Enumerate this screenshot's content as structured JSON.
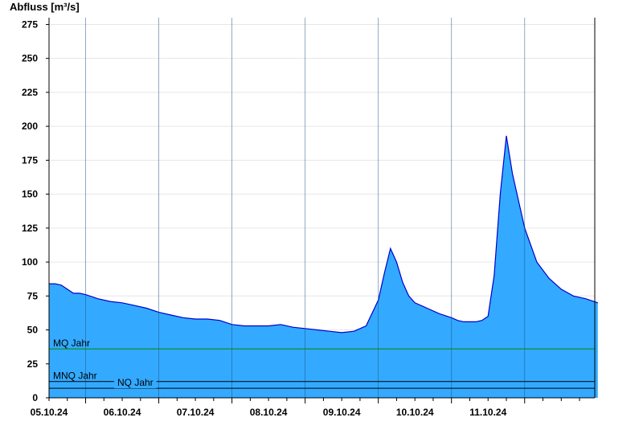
{
  "chart_data": {
    "type": "area",
    "ylabel": "Abfluss [m³/s]",
    "ylim": [
      0,
      280
    ],
    "yticks": [
      0,
      25,
      50,
      75,
      100,
      125,
      150,
      175,
      200,
      225,
      250,
      275
    ],
    "xlim_days": [
      "04.10.24 12:00",
      "11.10.24 23:00"
    ],
    "xtick_labels": [
      "05.10.24",
      "06.10.24",
      "07.10.24",
      "08.10.24",
      "09.10.24",
      "10.10.24",
      "11.10.24"
    ],
    "grid": true,
    "fill_color": "#33aaff",
    "line_color": "#0000cc",
    "series": [
      {
        "x_hours_from_start": [
          0,
          2,
          4,
          6,
          8,
          10,
          12,
          16,
          20,
          24,
          28,
          32,
          36,
          40,
          44,
          48,
          52,
          56,
          60,
          64,
          68,
          72,
          76,
          80,
          84,
          88,
          92,
          96,
          100,
          104,
          108,
          110,
          112,
          114,
          116,
          118,
          120,
          124,
          128,
          132,
          134,
          136,
          138,
          140,
          142,
          144,
          146,
          148,
          150,
          152,
          156,
          160,
          164,
          168,
          172,
          176,
          180
        ],
        "values": [
          84,
          84,
          83,
          80,
          77,
          77,
          76,
          73,
          71,
          70,
          68,
          66,
          63,
          61,
          59,
          58,
          58,
          57,
          54,
          53,
          53,
          53,
          54,
          52,
          51,
          50,
          49,
          48,
          49,
          53,
          72,
          92,
          110,
          100,
          85,
          75,
          70,
          66,
          62,
          59,
          57,
          56,
          56,
          56,
          57,
          60,
          90,
          150,
          193,
          165,
          125,
          100,
          88,
          80,
          75,
          73,
          70
        ]
      }
    ],
    "reference_lines": [
      {
        "label": "MQ Jahr",
        "value": 36,
        "color": "#008800"
      },
      {
        "label": "MNQ Jahr",
        "value": 12,
        "color": "#000000"
      },
      {
        "label": "NQ Jahr",
        "value": 7,
        "color": "#000000"
      }
    ]
  }
}
